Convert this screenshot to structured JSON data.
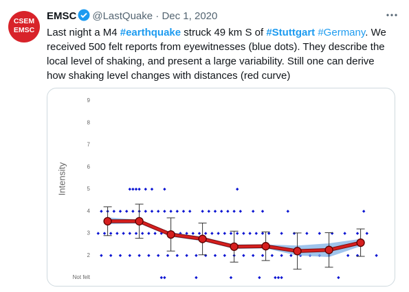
{
  "tweet": {
    "avatar": [
      "CSEM",
      "EMSC"
    ],
    "name": "EMSC",
    "handle": "@LastQuake",
    "separator": "·",
    "date": "Dec 1, 2020",
    "text": [
      "Last night a M4 ",
      "#earthquake",
      " struck 49 km S of ",
      "#Stuttgart",
      "#Germany",
      ". We",
      "received 500 felt reports from eyewitnesses (blue dots). They describe the",
      "local level of shaking, and present a large variability. Still one can derive",
      "how shaking level changes with distances (red curve)"
    ]
  },
  "chart_data": {
    "type": "scatter",
    "y_label": "Intensity",
    "xlim": [
      0,
      100
    ],
    "ylim": [
      1,
      9
    ],
    "yticks": [
      {
        "value": 1,
        "label": "Not felt"
      },
      2,
      3,
      4,
      5,
      6,
      7,
      8,
      9
    ],
    "grid": false,
    "points": {
      "color": "#0a14d2",
      "x": [
        18,
        19,
        20,
        21,
        23,
        25,
        29,
        52,
        9,
        11,
        13,
        15,
        17,
        19,
        21,
        23,
        25,
        27,
        29,
        31,
        33,
        35,
        37,
        41,
        43,
        45,
        47,
        49,
        51,
        53,
        57,
        60,
        68,
        92,
        8,
        10,
        12,
        14,
        16,
        18,
        20,
        22,
        24,
        26,
        28,
        30,
        32,
        34,
        36,
        38,
        40,
        42,
        44,
        46,
        48,
        50,
        52,
        54,
        56,
        58,
        60,
        62,
        66,
        70,
        74,
        78,
        82,
        86,
        90,
        93,
        9,
        12,
        15,
        18,
        21,
        24,
        27,
        30,
        33,
        36,
        39,
        42,
        45,
        48,
        51,
        54,
        57,
        60,
        63,
        66,
        69,
        72,
        75,
        78,
        81,
        87,
        90,
        96,
        28,
        29,
        39,
        50,
        59,
        64,
        65,
        66,
        84
      ],
      "values": [
        5,
        5,
        5,
        5,
        5,
        5,
        5,
        5,
        4,
        4,
        4,
        4,
        4,
        4,
        4,
        4,
        4,
        4,
        4,
        4,
        4,
        4,
        4,
        4,
        4,
        4,
        4,
        4,
        4,
        4,
        4,
        4,
        4,
        4,
        3,
        3,
        3,
        3,
        3,
        3,
        3,
        3,
        3,
        3,
        3,
        3,
        3,
        3,
        3,
        3,
        3,
        3,
        3,
        3,
        3,
        3,
        3,
        3,
        3,
        3,
        3,
        3,
        3,
        3,
        3,
        3,
        3,
        3,
        3,
        3,
        2,
        2,
        2,
        2,
        2,
        2,
        2,
        2,
        2,
        2,
        2,
        2,
        2,
        2,
        2,
        2,
        2,
        2,
        2,
        2,
        2,
        2,
        2,
        2,
        2,
        2,
        2,
        2,
        1,
        1,
        1,
        1,
        1,
        1,
        1,
        1,
        1
      ]
    },
    "curve": {
      "color": "#d61f1f",
      "x": [
        11,
        21,
        31,
        41,
        51,
        61,
        71,
        81,
        91
      ],
      "values": [
        3.55,
        3.55,
        2.95,
        2.75,
        2.4,
        2.42,
        2.2,
        2.25,
        2.58
      ],
      "errors": [
        0.65,
        0.77,
        0.75,
        0.72,
        0.7,
        0.65,
        0.82,
        0.78,
        0.62
      ]
    },
    "band": {
      "color": "#7fb0e6",
      "high": [
        3.72,
        3.62,
        3.05,
        2.85,
        2.5,
        2.5,
        2.45,
        2.55,
        2.75
      ],
      "low": [
        3.42,
        3.45,
        2.85,
        2.65,
        2.3,
        2.32,
        2.0,
        1.93,
        2.42
      ]
    }
  }
}
